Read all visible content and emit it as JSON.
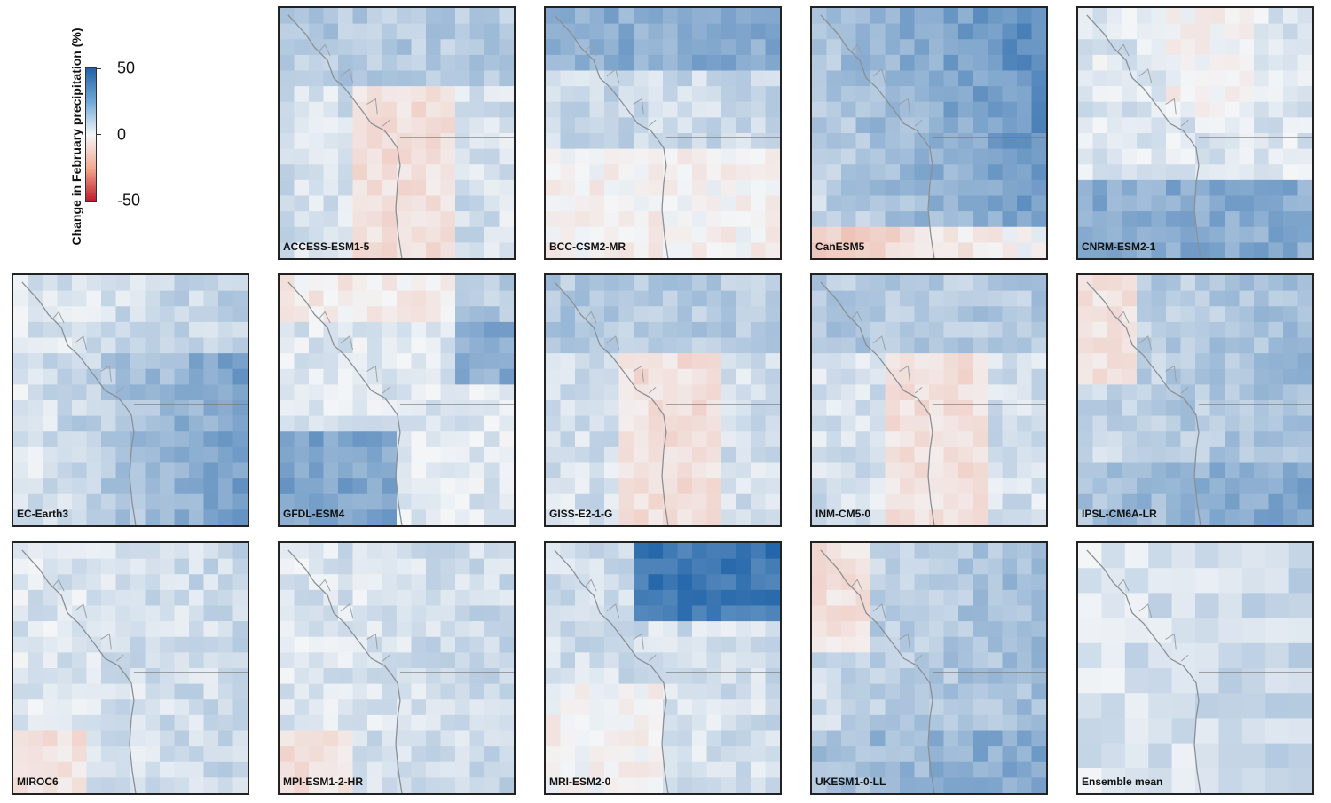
{
  "legend": {
    "title": "Change in February precipitation (%)",
    "ticks": [
      "50",
      "0",
      "-50"
    ],
    "colors": {
      "high": "#1f63a8",
      "mid": "#f4f6f8",
      "low": "#c0172b"
    }
  },
  "panels": [
    {
      "label": "ACCESS-ESM1-5",
      "tone": "mixed-orange"
    },
    {
      "label": "BCC-CSM2-MR",
      "tone": "mixed"
    },
    {
      "label": "CanESM5",
      "tone": "strong-blue"
    },
    {
      "label": "CNRM-ESM2-1",
      "tone": "blue-south"
    },
    {
      "label": "EC-Earth3",
      "tone": "blue-east"
    },
    {
      "label": "GFDL-ESM4",
      "tone": "blue-southwest"
    },
    {
      "label": "GISS-E2-1-G",
      "tone": "mixed-orange"
    },
    {
      "label": "INM-CM5-0",
      "tone": "mixed-orange"
    },
    {
      "label": "IPSL-CM6A-LR",
      "tone": "blue"
    },
    {
      "label": "MIROC6",
      "tone": "light"
    },
    {
      "label": "MPI-ESM1-2-HR",
      "tone": "light"
    },
    {
      "label": "MRI-ESM2-0",
      "tone": "strong-blue-north"
    },
    {
      "label": "UKESM1-0-LL",
      "tone": "blue"
    },
    {
      "label": "Ensemble mean",
      "tone": "smooth"
    }
  ]
}
